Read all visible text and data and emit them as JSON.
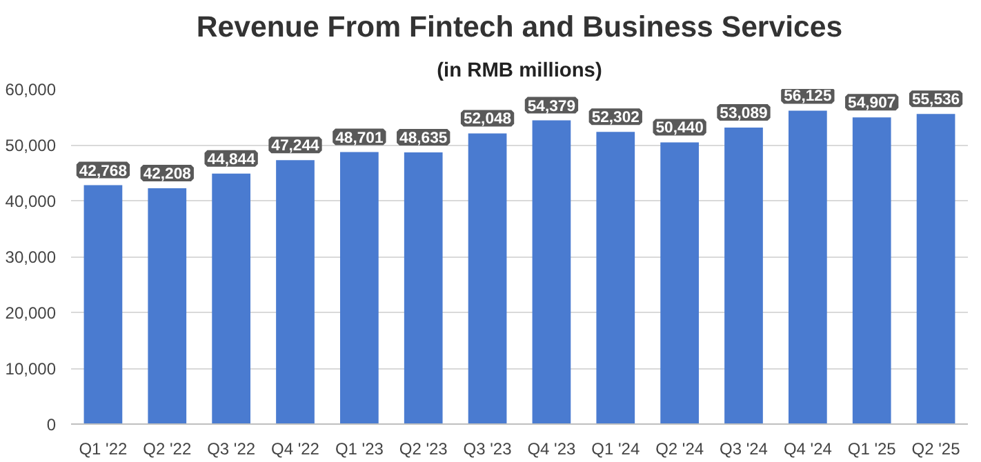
{
  "chart_data": {
    "type": "bar",
    "title": "Revenue From Fintech and Business Services",
    "subtitle": "(in RMB millions)",
    "categories": [
      "Q1 '22",
      "Q2 '22",
      "Q3 '22",
      "Q4 '22",
      "Q1 '23",
      "Q2 '23",
      "Q3 '23",
      "Q4 '23",
      "Q1 '24",
      "Q2 '24",
      "Q3 '24",
      "Q4 '24",
      "Q1 '25",
      "Q2 '25"
    ],
    "values": [
      42768,
      42208,
      44844,
      47244,
      48701,
      48635,
      52048,
      54379,
      52302,
      50440,
      53089,
      56125,
      54907,
      55536
    ],
    "color": "#4a7bd0",
    "ylim": [
      0,
      60000
    ],
    "yticks": [
      0,
      {
        "value": 10000,
        "label": "10,000"
      },
      {
        "value": 20000,
        "label": "20,000"
      },
      {
        "value": 30000,
        "label": "30,000"
      },
      {
        "value": 40000,
        "label": "40,000"
      },
      {
        "value": 50000,
        "label": "50,000"
      },
      {
        "value": 60000,
        "label": "60,000"
      }
    ],
    "value_labels": [
      "42,768",
      "42,208",
      "44,844",
      "47,244",
      "48,701",
      "48,635",
      "52,048",
      "54,379",
      "52,302",
      "50,440",
      "53,089",
      "56,125",
      "54,907",
      "55,536"
    ],
    "grid": "y"
  }
}
